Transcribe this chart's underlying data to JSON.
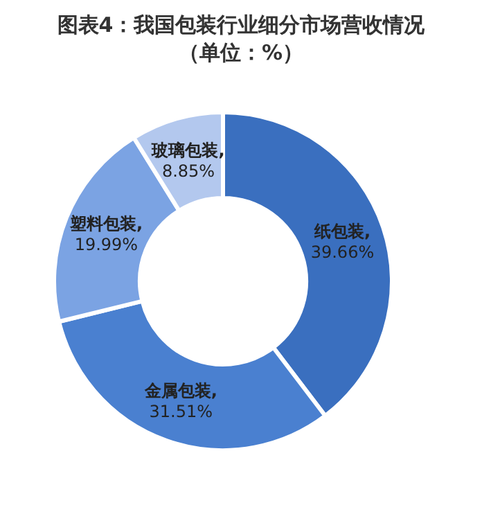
{
  "chart_data": {
    "type": "donut",
    "title": "图表4：我国包装行业细分市场营收情况（单位：%）",
    "categories": [
      "纸包装",
      "金属包装",
      "塑料包装",
      "玻璃包装"
    ],
    "values": [
      39.66,
      31.51,
      19.99,
      8.85
    ],
    "colors": [
      "#3a6fbf",
      "#4a80d0",
      "#7ba3e3",
      "#b3c8ee"
    ],
    "value_labels": [
      ", 39.66%",
      ", 31.51%",
      ", 19.99%",
      ", 8.85%"
    ],
    "legend": false
  }
}
